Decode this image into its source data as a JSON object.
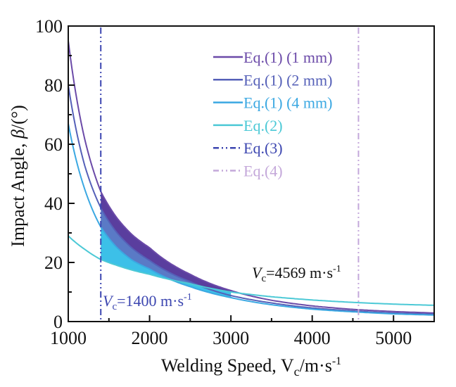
{
  "chart_data": {
    "type": "line",
    "title": "",
    "xlabel": "Welding Speed, V",
    "xlabel_sub": "c",
    "xlabel_unit": "/m·s",
    "xlabel_sup": "-1",
    "ylabel": "Impact Angle, ",
    "ylabel_symbol": "β",
    "ylabel_unit": "/(°)",
    "xlim": [
      1000,
      5500
    ],
    "ylim": [
      0,
      100
    ],
    "xticks": [
      1000,
      2000,
      3000,
      4000,
      5000
    ],
    "xtick_labels": [
      "1000",
      "2000",
      "3000",
      "4000",
      "5000"
    ],
    "yticks": [
      0,
      20,
      40,
      60,
      80,
      100
    ],
    "ytick_labels": [
      "0",
      "20",
      "40",
      "60",
      "80",
      "100"
    ],
    "grid": false,
    "legend_position": "top-right",
    "x": [
      1000,
      1200,
      1400,
      1600,
      1800,
      2000,
      2500,
      3000,
      3500,
      4000,
      4569,
      5000,
      5500
    ],
    "series": [
      {
        "name": "Eq.(1) (1 mm)",
        "color": "#6b4aa8",
        "style": "solid",
        "values": [
          95,
          62,
          44,
          35,
          29,
          25,
          16,
          10.5,
          7.2,
          5.3,
          4.0,
          3.4,
          2.9
        ]
      },
      {
        "name": "Eq.(1) (2 mm)",
        "color": "#5560b8",
        "style": "solid",
        "values": [
          80,
          53,
          38.5,
          30,
          24.5,
          20.7,
          13.5,
          8.8,
          6.3,
          4.6,
          3.5,
          2.9,
          2.5
        ]
      },
      {
        "name": "Eq.(1) (4 mm)",
        "color": "#3ba8e2",
        "style": "solid",
        "values": [
          67,
          45,
          32,
          25,
          20.5,
          17.8,
          11.8,
          8.1,
          5.7,
          4.2,
          3.2,
          2.6,
          2.2
        ]
      },
      {
        "name": "Eq.(2)",
        "color": "#4cc9d6",
        "style": "solid",
        "values": [
          29,
          24.5,
          21,
          19,
          17.3,
          16,
          12.8,
          10,
          8.4,
          7.3,
          6.4,
          5.9,
          5.5
        ]
      },
      {
        "name": "Eq.(3)",
        "color": "#3c46b0",
        "style": "dash-dot-dot",
        "vertical_x": 1400
      },
      {
        "name": "Eq.(4)",
        "color": "#c4a8da",
        "style": "dash-dot-dot",
        "vertical_x": 4569
      }
    ],
    "shaded_bands": [
      {
        "between": [
          "Eq.(1) (1 mm)",
          "Eq.(1) (2 mm)"
        ],
        "color": "#5a3e9e",
        "x_range": [
          1400,
          3000
        ]
      },
      {
        "between": [
          "Eq.(1) (2 mm)",
          "Eq.(1) (4 mm)"
        ],
        "color": "#5a7ac6",
        "x_range": [
          1400,
          3000
        ]
      },
      {
        "between": [
          "Eq.(1) (4 mm)",
          "Eq.(2)"
        ],
        "color": "#3cc0e8",
        "x_range": [
          1400,
          3000
        ]
      }
    ],
    "annotations": [
      {
        "prefix": "V",
        "sub": "c",
        "text": "=1400 m·s",
        "sup": "-1",
        "color": "#3c46b0"
      },
      {
        "prefix": "V",
        "sub": "c",
        "text": "=4569 m·s",
        "sup": "-1",
        "color": "#111111"
      }
    ]
  }
}
